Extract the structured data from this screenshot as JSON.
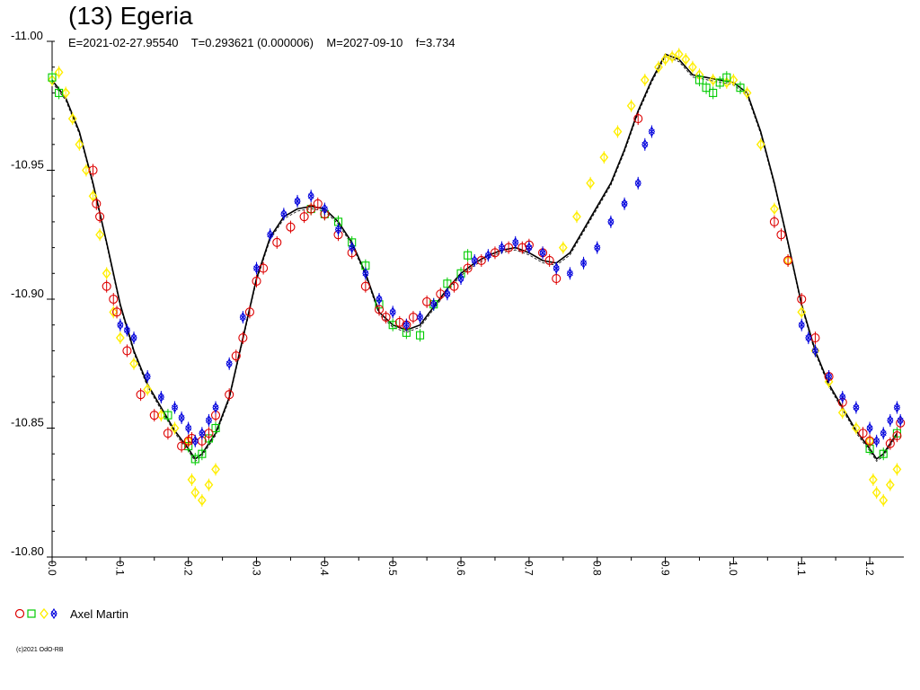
{
  "chart_data": {
    "type": "scatter",
    "title": "(13) Egeria",
    "subtitle": "E=2021-02-27.95540    T=0.293621 (0.000006)    M=2027-09-10    f=3.734",
    "xlim": [
      0.0,
      1.25
    ],
    "ylim": [
      -11.0,
      -10.8
    ],
    "y_inverted": true,
    "x_ticks": [
      "0.0",
      "0.1",
      "0.2",
      "0.3",
      "0.4",
      "0.5",
      "0.6",
      "0.7",
      "0.8",
      "0.9",
      "1.0",
      "1.1",
      "1.2"
    ],
    "y_ticks": [
      "-11.00",
      "-10.95",
      "-10.90",
      "-10.85",
      "-10.80"
    ],
    "grid": false,
    "legend_position": "bottom-left",
    "legend": {
      "label": "Axel Martin",
      "markers": [
        "red-circle",
        "green-square",
        "yellow-diamond",
        "blue-star"
      ]
    },
    "fit_curve": {
      "x": [
        0.0,
        0.02,
        0.04,
        0.06,
        0.08,
        0.1,
        0.12,
        0.14,
        0.16,
        0.18,
        0.2,
        0.21,
        0.22,
        0.24,
        0.26,
        0.28,
        0.3,
        0.32,
        0.34,
        0.36,
        0.38,
        0.4,
        0.42,
        0.44,
        0.46,
        0.48,
        0.5,
        0.52,
        0.54,
        0.56,
        0.58,
        0.6,
        0.62,
        0.64,
        0.66,
        0.68,
        0.7,
        0.72,
        0.74,
        0.76,
        0.78,
        0.8,
        0.82,
        0.84,
        0.86,
        0.88,
        0.9,
        0.92,
        0.94,
        0.96,
        0.98,
        1.0,
        1.02,
        1.04,
        1.06,
        1.08,
        1.1,
        1.12,
        1.14,
        1.16,
        1.18,
        1.2,
        1.21,
        1.22,
        1.24
      ],
      "y": [
        -10.985,
        -10.978,
        -10.965,
        -10.945,
        -10.922,
        -10.898,
        -10.88,
        -10.867,
        -10.858,
        -10.849,
        -10.842,
        -10.838,
        -10.84,
        -10.848,
        -10.862,
        -10.885,
        -10.908,
        -10.924,
        -10.932,
        -10.935,
        -10.936,
        -10.935,
        -10.93,
        -10.922,
        -10.91,
        -10.895,
        -10.89,
        -10.888,
        -10.89,
        -10.897,
        -10.904,
        -10.91,
        -10.914,
        -10.917,
        -10.919,
        -10.92,
        -10.918,
        -10.915,
        -10.914,
        -10.918,
        -10.927,
        -10.936,
        -10.945,
        -10.958,
        -10.973,
        -10.985,
        -10.995,
        -10.993,
        -10.987,
        -10.986,
        -10.985,
        -10.984,
        -10.98,
        -10.965,
        -10.945,
        -10.922,
        -10.898,
        -10.88,
        -10.867,
        -10.858,
        -10.849,
        -10.842,
        -10.838,
        -10.84,
        -10.848
      ]
    },
    "series": [
      {
        "color": "#dd0000",
        "marker": "circle",
        "x": [
          0.06,
          0.065,
          0.07,
          0.08,
          0.09,
          0.095,
          0.11,
          0.13,
          0.15,
          0.17,
          0.19,
          0.2,
          0.205,
          0.22,
          0.23,
          0.24,
          0.26,
          0.27,
          0.28,
          0.29,
          0.3,
          0.31,
          0.33,
          0.35,
          0.37,
          0.38,
          0.39,
          0.4,
          0.42,
          0.44,
          0.46,
          0.48,
          0.49,
          0.51,
          0.52,
          0.53,
          0.55,
          0.57,
          0.59,
          0.61,
          0.63,
          0.65,
          0.67,
          0.69,
          0.7,
          0.72,
          0.73,
          0.74,
          0.86,
          1.06,
          1.07,
          1.08,
          1.1,
          1.12,
          1.14,
          1.16,
          1.19,
          1.2,
          1.23,
          1.24,
          1.245
        ],
        "y": [
          -10.95,
          -10.937,
          -10.932,
          -10.905,
          -10.9,
          -10.895,
          -10.88,
          -10.863,
          -10.855,
          -10.848,
          -10.843,
          -10.845,
          -10.846,
          -10.845,
          -10.848,
          -10.855,
          -10.863,
          -10.878,
          -10.885,
          -10.895,
          -10.907,
          -10.912,
          -10.922,
          -10.928,
          -10.932,
          -10.935,
          -10.937,
          -10.933,
          -10.925,
          -10.918,
          -10.905,
          -10.896,
          -10.893,
          -10.891,
          -10.89,
          -10.893,
          -10.899,
          -10.902,
          -10.905,
          -10.912,
          -10.915,
          -10.918,
          -10.92,
          -10.92,
          -10.921,
          -10.918,
          -10.915,
          -10.908,
          -10.97,
          -10.93,
          -10.925,
          -10.915,
          -10.9,
          -10.885,
          -10.87,
          -10.86,
          -10.848,
          -10.845,
          -10.844,
          -10.847,
          -10.852
        ]
      },
      {
        "color": "#00cc00",
        "marker": "square",
        "x": [
          0.0,
          0.01,
          0.17,
          0.2,
          0.21,
          0.22,
          0.23,
          0.24,
          0.38,
          0.4,
          0.42,
          0.44,
          0.46,
          0.48,
          0.5,
          0.52,
          0.54,
          0.56,
          0.58,
          0.6,
          0.61,
          0.95,
          0.96,
          0.97,
          0.98,
          0.99,
          1.01,
          1.2,
          1.22,
          1.24
        ],
        "y": [
          -10.986,
          -10.98,
          -10.855,
          -10.843,
          -10.838,
          -10.84,
          -10.846,
          -10.85,
          -10.935,
          -10.933,
          -10.93,
          -10.922,
          -10.913,
          -10.898,
          -10.89,
          -10.887,
          -10.886,
          -10.898,
          -10.906,
          -10.91,
          -10.917,
          -10.985,
          -10.982,
          -10.98,
          -10.984,
          -10.986,
          -10.982,
          -10.842,
          -10.84,
          -10.848
        ]
      },
      {
        "color": "#ffee00",
        "marker": "diamond",
        "x": [
          0.0,
          0.01,
          0.02,
          0.03,
          0.04,
          0.05,
          0.06,
          0.07,
          0.08,
          0.09,
          0.1,
          0.12,
          0.14,
          0.16,
          0.18,
          0.2,
          0.205,
          0.21,
          0.22,
          0.23,
          0.24,
          0.75,
          0.77,
          0.79,
          0.81,
          0.83,
          0.85,
          0.87,
          0.89,
          0.9,
          0.91,
          0.92,
          0.93,
          0.94,
          0.95,
          0.97,
          0.99,
          1.0,
          1.02,
          1.04,
          1.06,
          1.08,
          1.1,
          1.12,
          1.14,
          1.16,
          1.18,
          1.2,
          1.205,
          1.21,
          1.22,
          1.23,
          1.24
        ],
        "y": [
          -10.985,
          -10.988,
          -10.98,
          -10.97,
          -10.96,
          -10.95,
          -10.94,
          -10.925,
          -10.91,
          -10.895,
          -10.885,
          -10.875,
          -10.865,
          -10.855,
          -10.85,
          -10.845,
          -10.83,
          -10.825,
          -10.822,
          -10.828,
          -10.834,
          -10.92,
          -10.932,
          -10.945,
          -10.955,
          -10.965,
          -10.975,
          -10.985,
          -10.99,
          -10.993,
          -10.994,
          -10.995,
          -10.993,
          -10.99,
          -10.987,
          -10.985,
          -10.984,
          -10.985,
          -10.98,
          -10.96,
          -10.935,
          -10.915,
          -10.895,
          -10.88,
          -10.868,
          -10.856,
          -10.85,
          -10.845,
          -10.83,
          -10.825,
          -10.822,
          -10.828,
          -10.834
        ]
      },
      {
        "color": "#0000dd",
        "marker": "star",
        "x": [
          0.1,
          0.11,
          0.12,
          0.14,
          0.16,
          0.18,
          0.19,
          0.2,
          0.21,
          0.22,
          0.23,
          0.24,
          0.26,
          0.28,
          0.3,
          0.32,
          0.34,
          0.36,
          0.38,
          0.4,
          0.42,
          0.44,
          0.46,
          0.48,
          0.5,
          0.52,
          0.54,
          0.56,
          0.58,
          0.6,
          0.62,
          0.64,
          0.66,
          0.68,
          0.7,
          0.72,
          0.74,
          0.76,
          0.78,
          0.8,
          0.82,
          0.84,
          0.86,
          0.87,
          0.88,
          1.1,
          1.11,
          1.12,
          1.14,
          1.16,
          1.18,
          1.2,
          1.21,
          1.22,
          1.23,
          1.24,
          1.245
        ],
        "y": [
          -10.89,
          -10.888,
          -10.885,
          -10.87,
          -10.862,
          -10.858,
          -10.854,
          -10.85,
          -10.845,
          -10.848,
          -10.853,
          -10.858,
          -10.875,
          -10.893,
          -10.912,
          -10.925,
          -10.933,
          -10.938,
          -10.94,
          -10.935,
          -10.927,
          -10.92,
          -10.91,
          -10.9,
          -10.895,
          -10.89,
          -10.893,
          -10.898,
          -10.902,
          -10.908,
          -10.915,
          -10.917,
          -10.92,
          -10.922,
          -10.92,
          -10.918,
          -10.912,
          -10.91,
          -10.914,
          -10.92,
          -10.93,
          -10.937,
          -10.945,
          -10.96,
          -10.965,
          -10.89,
          -10.885,
          -10.88,
          -10.87,
          -10.862,
          -10.858,
          -10.85,
          -10.845,
          -10.848,
          -10.853,
          -10.858,
          -10.853
        ]
      }
    ]
  },
  "footer": {
    "copyright": "(c)2021 OdO-RB"
  }
}
